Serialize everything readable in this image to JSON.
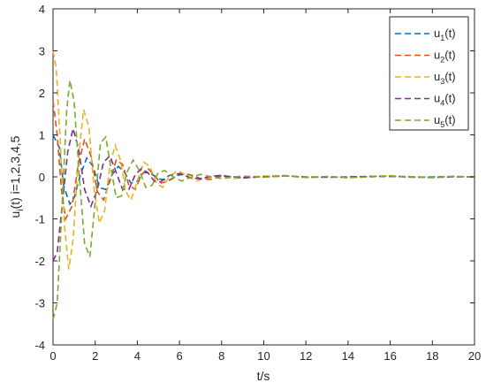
{
  "chart_data": {
    "type": "line",
    "xlabel": "t/s",
    "ylabel": {
      "base": "u",
      "sub": "i",
      "rest": "(t) i=1,2,3,4,5"
    },
    "xlim": [
      0,
      20
    ],
    "ylim": [
      -4,
      4
    ],
    "xticks": [
      0,
      2,
      4,
      6,
      8,
      10,
      12,
      14,
      16,
      18,
      20
    ],
    "yticks": [
      -4,
      -3,
      -2,
      -1,
      0,
      1,
      2,
      3,
      4
    ],
    "grid": false,
    "legend_position": "top-right",
    "series": [
      {
        "name": "u1(t)",
        "legend": {
          "base": "u",
          "sub": "1",
          "rest": "(t)"
        },
        "color": "#0072BD",
        "values": [
          [
            0,
            1.0
          ],
          [
            0.3,
            0.7
          ],
          [
            0.5,
            -0.2
          ],
          [
            0.8,
            -0.65
          ],
          [
            1.0,
            -0.5
          ],
          [
            1.3,
            0.05
          ],
          [
            1.6,
            0.45
          ],
          [
            1.9,
            0.25
          ],
          [
            2.2,
            -0.25
          ],
          [
            2.5,
            -0.3
          ],
          [
            2.8,
            0.05
          ],
          [
            3.1,
            0.25
          ],
          [
            3.4,
            0.1
          ],
          [
            3.7,
            -0.15
          ],
          [
            4.0,
            -0.1
          ],
          [
            4.3,
            0.1
          ],
          [
            4.6,
            0.1
          ],
          [
            5.0,
            -0.05
          ],
          [
            5.5,
            -0.08
          ],
          [
            6.0,
            0.05
          ],
          [
            6.5,
            0.05
          ],
          [
            7.0,
            -0.04
          ],
          [
            8.0,
            0.02
          ],
          [
            9.0,
            -0.02
          ],
          [
            10.0,
            0.01
          ],
          [
            11.0,
            0.02
          ],
          [
            12.0,
            -0.01
          ],
          [
            13.0,
            0.0
          ],
          [
            14.0,
            -0.01
          ],
          [
            15.0,
            0.01
          ],
          [
            16.0,
            0.02
          ],
          [
            17.0,
            -0.01
          ],
          [
            18.0,
            0.0
          ],
          [
            19.0,
            0.01
          ],
          [
            20.0,
            0.0
          ]
        ]
      },
      {
        "name": "u2(t)",
        "legend": {
          "base": "u",
          "sub": "2",
          "rest": "(t)"
        },
        "color": "#D95319",
        "values": [
          [
            0,
            1.8
          ],
          [
            0.2,
            1.0
          ],
          [
            0.4,
            -0.3
          ],
          [
            0.6,
            -1.0
          ],
          [
            0.9,
            -0.7
          ],
          [
            1.2,
            0.3
          ],
          [
            1.5,
            0.9
          ],
          [
            1.8,
            0.5
          ],
          [
            2.1,
            -0.35
          ],
          [
            2.4,
            -0.55
          ],
          [
            2.7,
            -0.1
          ],
          [
            3.0,
            0.4
          ],
          [
            3.3,
            0.3
          ],
          [
            3.6,
            -0.2
          ],
          [
            3.9,
            -0.3
          ],
          [
            4.2,
            0.05
          ],
          [
            4.5,
            0.2
          ],
          [
            4.8,
            0.05
          ],
          [
            5.1,
            -0.15
          ],
          [
            5.5,
            -0.1
          ],
          [
            6.0,
            0.08
          ],
          [
            6.5,
            0.05
          ],
          [
            7.0,
            -0.05
          ],
          [
            7.5,
            -0.06
          ],
          [
            8.0,
            0.02
          ],
          [
            9.0,
            -0.03
          ],
          [
            10.0,
            0.01
          ],
          [
            11.0,
            0.03
          ],
          [
            12.0,
            -0.01
          ],
          [
            13.0,
            0.0
          ],
          [
            14.0,
            -0.02
          ],
          [
            15.0,
            0.0
          ],
          [
            16.0,
            0.02
          ],
          [
            17.0,
            0.0
          ],
          [
            18.0,
            -0.02
          ],
          [
            19.0,
            0.01
          ],
          [
            20.0,
            0.0
          ]
        ]
      },
      {
        "name": "u3(t)",
        "legend": {
          "base": "u",
          "sub": "3",
          "rest": "(t)"
        },
        "color": "#EDB120",
        "values": [
          [
            0,
            3.0
          ],
          [
            0.15,
            2.6
          ],
          [
            0.35,
            0.8
          ],
          [
            0.55,
            -1.2
          ],
          [
            0.75,
            -2.2
          ],
          [
            0.95,
            -1.5
          ],
          [
            1.2,
            0.4
          ],
          [
            1.45,
            1.6
          ],
          [
            1.7,
            1.2
          ],
          [
            1.95,
            -0.3
          ],
          [
            2.2,
            -1.1
          ],
          [
            2.45,
            -0.8
          ],
          [
            2.7,
            0.3
          ],
          [
            2.95,
            0.75
          ],
          [
            3.2,
            0.4
          ],
          [
            3.45,
            -0.35
          ],
          [
            3.7,
            -0.55
          ],
          [
            4.0,
            -0.1
          ],
          [
            4.3,
            0.35
          ],
          [
            4.6,
            0.25
          ],
          [
            4.9,
            -0.15
          ],
          [
            5.2,
            -0.25
          ],
          [
            5.5,
            0.0
          ],
          [
            5.9,
            0.15
          ],
          [
            6.3,
            0.05
          ],
          [
            6.8,
            -0.1
          ],
          [
            7.3,
            -0.02
          ],
          [
            8.0,
            0.05
          ],
          [
            8.6,
            -0.04
          ],
          [
            9.2,
            0.0
          ],
          [
            10.0,
            0.02
          ],
          [
            11.0,
            0.03
          ],
          [
            12.0,
            -0.02
          ],
          [
            13.0,
            0.0
          ],
          [
            14.0,
            -0.02
          ],
          [
            15.0,
            0.01
          ],
          [
            16.0,
            0.03
          ],
          [
            17.0,
            0.0
          ],
          [
            18.0,
            -0.01
          ],
          [
            19.0,
            0.0
          ],
          [
            20.0,
            0.0
          ]
        ]
      },
      {
        "name": "u4(t)",
        "legend": {
          "base": "u",
          "sub": "4",
          "rest": "(t)"
        },
        "color": "#7E2F8E",
        "values": [
          [
            0,
            -2.0
          ],
          [
            0.2,
            -1.8
          ],
          [
            0.45,
            -0.6
          ],
          [
            0.7,
            0.6
          ],
          [
            0.95,
            1.15
          ],
          [
            1.2,
            0.7
          ],
          [
            1.5,
            -0.3
          ],
          [
            1.8,
            -0.7
          ],
          [
            2.1,
            -0.3
          ],
          [
            2.4,
            0.35
          ],
          [
            2.7,
            0.5
          ],
          [
            3.0,
            0.1
          ],
          [
            3.3,
            -0.3
          ],
          [
            3.6,
            -0.3
          ],
          [
            3.9,
            0.05
          ],
          [
            4.2,
            0.2
          ],
          [
            4.5,
            0.1
          ],
          [
            4.8,
            -0.1
          ],
          [
            5.1,
            -0.12
          ],
          [
            5.5,
            0.03
          ],
          [
            6.0,
            0.08
          ],
          [
            6.5,
            -0.02
          ],
          [
            7.0,
            -0.05
          ],
          [
            7.5,
            0.02
          ],
          [
            8.0,
            0.03
          ],
          [
            9.0,
            -0.02
          ],
          [
            10.0,
            0.0
          ],
          [
            11.0,
            0.02
          ],
          [
            12.0,
            0.0
          ],
          [
            13.0,
            -0.01
          ],
          [
            14.0,
            0.0
          ],
          [
            15.0,
            0.01
          ],
          [
            16.0,
            0.01
          ],
          [
            17.0,
            0.0
          ],
          [
            18.0,
            -0.01
          ],
          [
            19.0,
            0.0
          ],
          [
            20.0,
            0.0
          ]
        ]
      },
      {
        "name": "u5(t)",
        "legend": {
          "base": "u",
          "sub": "5",
          "rest": "(t)"
        },
        "color": "#77AC30",
        "values": [
          [
            0,
            -3.4
          ],
          [
            0.2,
            -3.0
          ],
          [
            0.45,
            -0.5
          ],
          [
            0.65,
            1.6
          ],
          [
            0.8,
            2.3
          ],
          [
            1.0,
            1.8
          ],
          [
            1.25,
            0.0
          ],
          [
            1.5,
            -1.6
          ],
          [
            1.75,
            -1.9
          ],
          [
            2.0,
            -0.6
          ],
          [
            2.25,
            0.8
          ],
          [
            2.5,
            0.95
          ],
          [
            2.75,
            0.2
          ],
          [
            3.0,
            -0.5
          ],
          [
            3.25,
            -0.45
          ],
          [
            3.5,
            0.1
          ],
          [
            3.8,
            0.4
          ],
          [
            4.1,
            0.15
          ],
          [
            4.4,
            -0.25
          ],
          [
            4.7,
            -0.2
          ],
          [
            5.0,
            0.1
          ],
          [
            5.3,
            0.15
          ],
          [
            5.7,
            0.0
          ],
          [
            6.1,
            -0.1
          ],
          [
            6.5,
            -0.02
          ],
          [
            7.0,
            0.06
          ],
          [
            7.5,
            0.0
          ],
          [
            8.0,
            -0.04
          ],
          [
            9.0,
            0.02
          ],
          [
            10.0,
            -0.01
          ],
          [
            11.0,
            0.02
          ],
          [
            12.0,
            -0.01
          ],
          [
            13.0,
            0.01
          ],
          [
            14.0,
            -0.02
          ],
          [
            15.0,
            0.0
          ],
          [
            16.0,
            0.02
          ],
          [
            17.0,
            0.0
          ],
          [
            18.0,
            -0.01
          ],
          [
            19.0,
            0.01
          ],
          [
            20.0,
            0.0
          ]
        ]
      }
    ]
  }
}
